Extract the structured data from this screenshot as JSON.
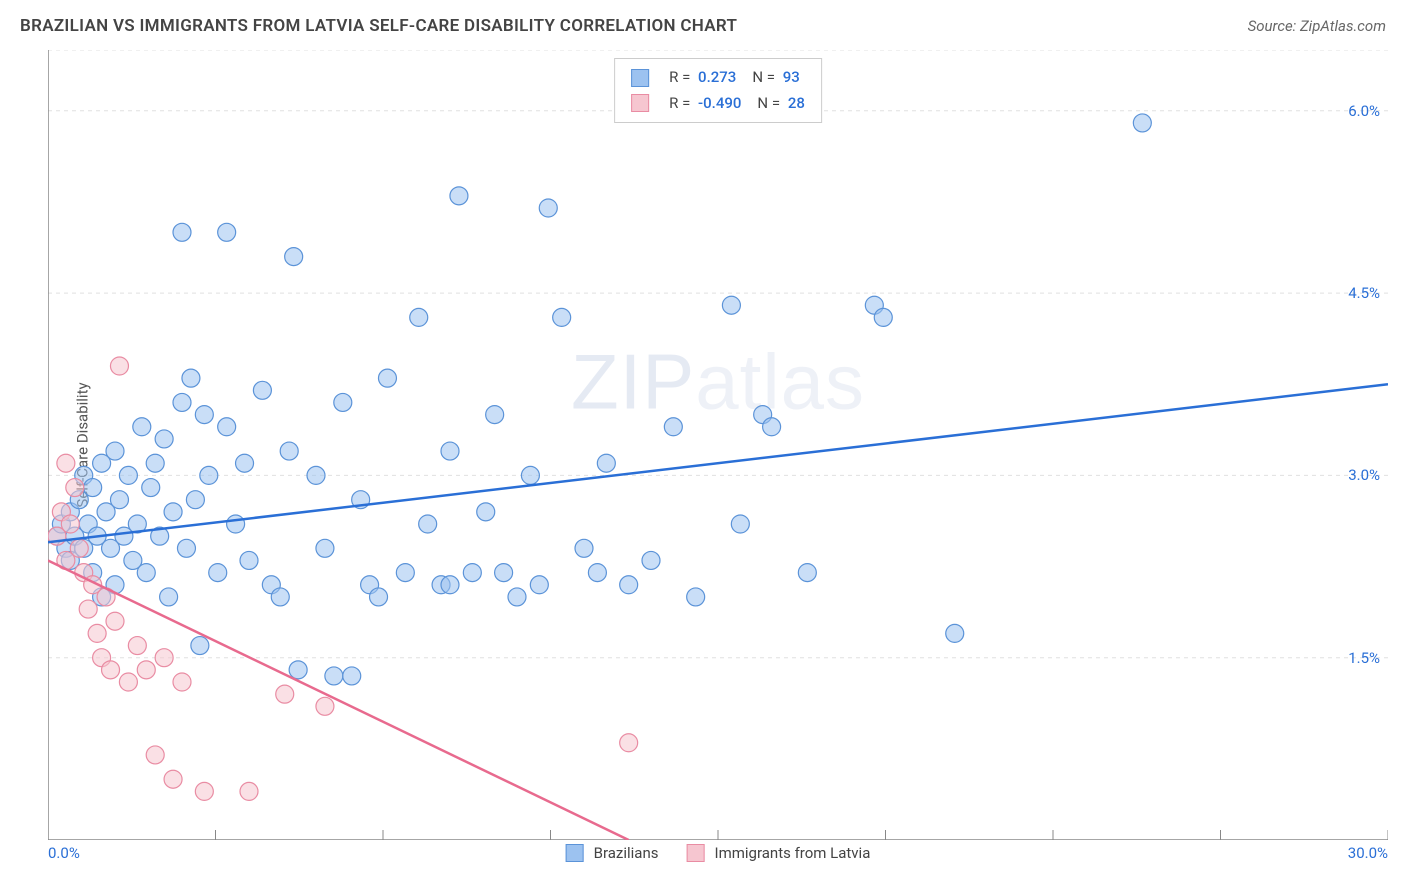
{
  "header": {
    "title": "BRAZILIAN VS IMMIGRANTS FROM LATVIA SELF-CARE DISABILITY CORRELATION CHART",
    "source": "Source: ZipAtlas.com"
  },
  "watermark": {
    "main": "ZIP",
    "thin": "atlas"
  },
  "chart": {
    "type": "scatter",
    "ylabel": "Self-Care Disability",
    "background_color": "#ffffff",
    "grid_color": "#e0e0e0",
    "axis_color": "#888888",
    "xlim": [
      0,
      30
    ],
    "ylim": [
      0,
      6.5
    ],
    "x_tick_labels": {
      "min": "0.0%",
      "max": "30.0%"
    },
    "y_ticks": [
      {
        "value": 1.5,
        "label": "1.5%"
      },
      {
        "value": 3.0,
        "label": "3.0%"
      },
      {
        "value": 4.5,
        "label": "4.5%"
      },
      {
        "value": 6.0,
        "label": "6.0%"
      }
    ],
    "x_minor_ticks": [
      0,
      3.75,
      7.5,
      11.25,
      15,
      18.75,
      22.5,
      26.25,
      30
    ],
    "y_gridlines": [
      1.5,
      3.0,
      4.5,
      6.0,
      6.5
    ],
    "marker_radius": 9,
    "marker_opacity": 0.55,
    "trend_line_width": 2.5
  },
  "series": [
    {
      "name": "Brazilians",
      "color_fill": "#9cc2f0",
      "color_stroke": "#5b93d8",
      "trend_color": "#2a6fd6",
      "R": "0.273",
      "N": "93",
      "trend": {
        "x1": 0,
        "y1": 2.45,
        "x2": 30,
        "y2": 3.75
      },
      "points": [
        [
          0.2,
          2.5
        ],
        [
          0.3,
          2.6
        ],
        [
          0.4,
          2.4
        ],
        [
          0.5,
          2.7
        ],
        [
          0.5,
          2.3
        ],
        [
          0.6,
          2.5
        ],
        [
          0.7,
          2.8
        ],
        [
          0.8,
          2.4
        ],
        [
          0.8,
          3.0
        ],
        [
          0.9,
          2.6
        ],
        [
          1.0,
          2.2
        ],
        [
          1.0,
          2.9
        ],
        [
          1.1,
          2.5
        ],
        [
          1.2,
          3.1
        ],
        [
          1.2,
          2.0
        ],
        [
          1.3,
          2.7
        ],
        [
          1.4,
          2.4
        ],
        [
          1.5,
          3.2
        ],
        [
          1.5,
          2.1
        ],
        [
          1.6,
          2.8
        ],
        [
          1.7,
          2.5
        ],
        [
          1.8,
          3.0
        ],
        [
          1.9,
          2.3
        ],
        [
          2.0,
          2.6
        ],
        [
          2.1,
          3.4
        ],
        [
          2.2,
          2.2
        ],
        [
          2.3,
          2.9
        ],
        [
          2.4,
          3.1
        ],
        [
          2.5,
          2.5
        ],
        [
          2.6,
          3.3
        ],
        [
          2.7,
          2.0
        ],
        [
          2.8,
          2.7
        ],
        [
          3.0,
          3.6
        ],
        [
          3.1,
          2.4
        ],
        [
          3.2,
          3.8
        ],
        [
          3.3,
          2.8
        ],
        [
          3.4,
          1.6
        ],
        [
          3.5,
          3.5
        ],
        [
          3.6,
          3.0
        ],
        [
          3.8,
          2.2
        ],
        [
          4.0,
          3.4
        ],
        [
          4.0,
          5.0
        ],
        [
          4.2,
          2.6
        ],
        [
          4.4,
          3.1
        ],
        [
          4.5,
          2.3
        ],
        [
          4.8,
          3.7
        ],
        [
          5.0,
          2.1
        ],
        [
          5.2,
          2.0
        ],
        [
          5.4,
          3.2
        ],
        [
          5.5,
          4.8
        ],
        [
          5.6,
          1.4
        ],
        [
          6.0,
          3.0
        ],
        [
          6.2,
          2.4
        ],
        [
          6.4,
          1.35
        ],
        [
          6.6,
          3.6
        ],
        [
          6.8,
          1.35
        ],
        [
          7.0,
          2.8
        ],
        [
          7.2,
          2.1
        ],
        [
          7.4,
          2.0
        ],
        [
          7.6,
          3.8
        ],
        [
          8.0,
          2.2
        ],
        [
          8.3,
          4.3
        ],
        [
          8.5,
          2.6
        ],
        [
          8.8,
          2.1
        ],
        [
          9.0,
          3.2
        ],
        [
          9.2,
          5.3
        ],
        [
          9.5,
          2.2
        ],
        [
          9.8,
          2.7
        ],
        [
          10.0,
          3.5
        ],
        [
          10.2,
          2.2
        ],
        [
          10.5,
          2.0
        ],
        [
          10.8,
          3.0
        ],
        [
          11.0,
          2.1
        ],
        [
          11.2,
          5.2
        ],
        [
          11.5,
          4.3
        ],
        [
          12.0,
          2.4
        ],
        [
          12.3,
          2.2
        ],
        [
          12.5,
          3.1
        ],
        [
          13.0,
          2.1
        ],
        [
          13.5,
          2.3
        ],
        [
          14.0,
          3.4
        ],
        [
          14.5,
          2.0
        ],
        [
          15.3,
          4.4
        ],
        [
          15.5,
          2.6
        ],
        [
          16.0,
          3.5
        ],
        [
          16.2,
          3.4
        ],
        [
          17.0,
          2.2
        ],
        [
          18.5,
          4.4
        ],
        [
          18.7,
          4.3
        ],
        [
          20.3,
          1.7
        ],
        [
          24.5,
          5.9
        ],
        [
          9.0,
          2.1
        ],
        [
          3.0,
          5.0
        ]
      ]
    },
    {
      "name": "Immigrants from Latvia",
      "color_fill": "#f6c6d0",
      "color_stroke": "#e98ca3",
      "trend_color": "#e86a8e",
      "R": "-0.490",
      "N": "28",
      "trend": {
        "x1": 0,
        "y1": 2.3,
        "x2": 13,
        "y2": 0.0
      },
      "points": [
        [
          0.2,
          2.5
        ],
        [
          0.3,
          2.7
        ],
        [
          0.4,
          2.3
        ],
        [
          0.4,
          3.1
        ],
        [
          0.5,
          2.6
        ],
        [
          0.6,
          2.9
        ],
        [
          0.7,
          2.4
        ],
        [
          0.8,
          2.2
        ],
        [
          0.9,
          1.9
        ],
        [
          1.0,
          2.1
        ],
        [
          1.1,
          1.7
        ],
        [
          1.2,
          1.5
        ],
        [
          1.3,
          2.0
        ],
        [
          1.4,
          1.4
        ],
        [
          1.5,
          1.8
        ],
        [
          1.6,
          3.9
        ],
        [
          1.8,
          1.3
        ],
        [
          2.0,
          1.6
        ],
        [
          2.2,
          1.4
        ],
        [
          2.4,
          0.7
        ],
        [
          2.6,
          1.5
        ],
        [
          2.8,
          0.5
        ],
        [
          3.0,
          1.3
        ],
        [
          3.5,
          0.4
        ],
        [
          4.5,
          0.4
        ],
        [
          5.3,
          1.2
        ],
        [
          6.2,
          1.1
        ],
        [
          13.0,
          0.8
        ]
      ]
    }
  ],
  "legend_labels": {
    "R": "R =",
    "N": "N ="
  }
}
